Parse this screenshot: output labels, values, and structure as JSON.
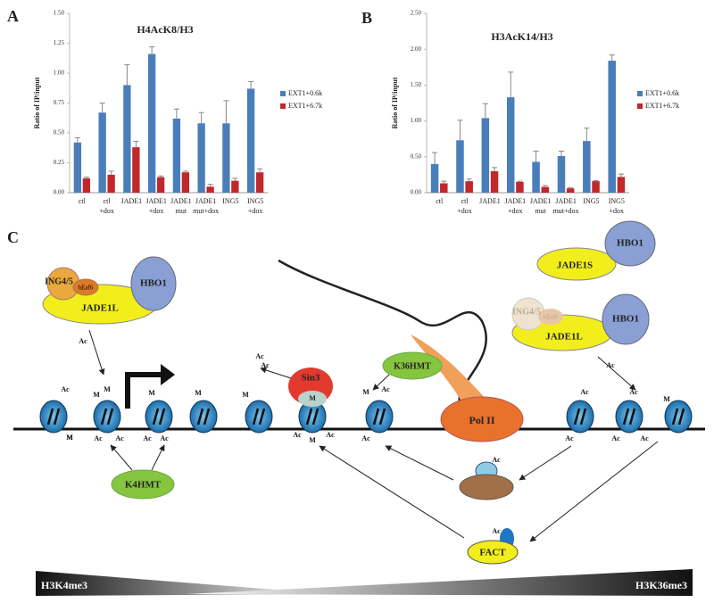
{
  "chart_data": [
    {
      "type": "bar",
      "panel": "A",
      "title": "H4AcK8/H3",
      "y_label": "Ratio of IP/input",
      "categories": [
        "ctl",
        "ctl\n+dox",
        "JADE1",
        "JADE1\n+dox",
        "JADE1\nmut",
        "JADE1\nmut+dox",
        "ING5",
        "ING5\n+dox"
      ],
      "series": [
        {
          "name": "EXT1+0.6k",
          "color": "#4a7ebb",
          "values": [
            0.42,
            0.67,
            0.9,
            1.16,
            0.62,
            0.58,
            0.58,
            0.87
          ],
          "errors": [
            0.04,
            0.08,
            0.17,
            0.06,
            0.08,
            0.09,
            0.19,
            0.06
          ]
        },
        {
          "name": "EXT1+6.7k",
          "color": "#c0282b",
          "values": [
            0.12,
            0.15,
            0.38,
            0.13,
            0.17,
            0.05,
            0.1,
            0.17
          ],
          "errors": [
            0.01,
            0.03,
            0.05,
            0.01,
            0.01,
            0.02,
            0.02,
            0.03
          ]
        }
      ],
      "ylim": [
        0,
        1.5
      ],
      "yticks": [
        {
          "value": 0,
          "label": "0.00"
        },
        {
          "value": 0.25,
          "label": "0.25"
        },
        {
          "value": 0.5,
          "label": "0.50"
        },
        {
          "value": 0.75,
          "label": "0.75"
        },
        {
          "value": 1,
          "label": "1.00"
        },
        {
          "value": 1.25,
          "label": "1.25"
        },
        {
          "value": 1.5,
          "label": "1.50"
        }
      ],
      "grid": false,
      "legend": "right"
    },
    {
      "type": "bar",
      "panel": "B",
      "title": "H3AcK14/H3",
      "y_label": "Ratio of IP/input",
      "categories": [
        "ctl",
        "ctl\n+dox",
        "JADE1",
        "JADE1\n+dox",
        "JADE1\nmut",
        "JADE1\nmut+dox",
        "ING5",
        "ING5\n+dox"
      ],
      "series": [
        {
          "name": "EXT1+0.6k",
          "color": "#4a7ebb",
          "values": [
            0.4,
            0.73,
            1.04,
            1.33,
            0.43,
            0.51,
            0.72,
            1.84
          ],
          "errors": [
            0.16,
            0.28,
            0.2,
            0.35,
            0.15,
            0.07,
            0.18,
            0.08
          ]
        },
        {
          "name": "EXT1+6.7k",
          "color": "#c0282b",
          "values": [
            0.13,
            0.16,
            0.3,
            0.15,
            0.08,
            0.06,
            0.16,
            0.22
          ],
          "errors": [
            0.03,
            0.03,
            0.05,
            0.01,
            0.02,
            0.01,
            0.01,
            0.04
          ]
        }
      ],
      "ylim": [
        0,
        2.5
      ],
      "yticks": [
        {
          "value": 0,
          "label": "0.00"
        },
        {
          "value": 0.5,
          "label": "0.50"
        },
        {
          "value": 1,
          "label": "1.00"
        },
        {
          "value": 1.5,
          "label": "1.50"
        },
        {
          "value": 2,
          "label": "2.00"
        },
        {
          "value": 2.5,
          "label": "2.50"
        }
      ],
      "grid": false,
      "legend": "right"
    }
  ],
  "diagram": {
    "panel": "C",
    "complex_left": {
      "ing": "ING4/5",
      "eaf": "hEaf6",
      "hbo": "HBO1",
      "jade": "JADE1L"
    },
    "complex_right_top": {
      "jade": "JADE1S",
      "hbo": "HBO1"
    },
    "complex_right": {
      "ing": "ING4/5",
      "eaf": "hEaf6",
      "hbo": "HBO1",
      "jade": "JADE1L"
    },
    "sin3": "Sin3",
    "sin3_mark": "M",
    "k36hmt": "K36HMT",
    "k4hmt": "K4HMT",
    "pol2": "Pol II",
    "fact": "FACT",
    "gradient_left": "H3K4me3",
    "gradient_right": "H3K36me3",
    "marks": [
      "Ac",
      "Ac",
      "M",
      "M",
      "Ac",
      "Ac",
      "M",
      "M",
      "Ac",
      "Ac",
      "M",
      "M",
      "M",
      "Ac",
      "Ac",
      "Ac",
      "M",
      "M",
      "Ac",
      "Ac",
      "Ac",
      "Ac",
      "Ac",
      "Ac",
      "Ac",
      "Ac",
      "M",
      "Ac",
      "Ac",
      "Ac"
    ]
  }
}
